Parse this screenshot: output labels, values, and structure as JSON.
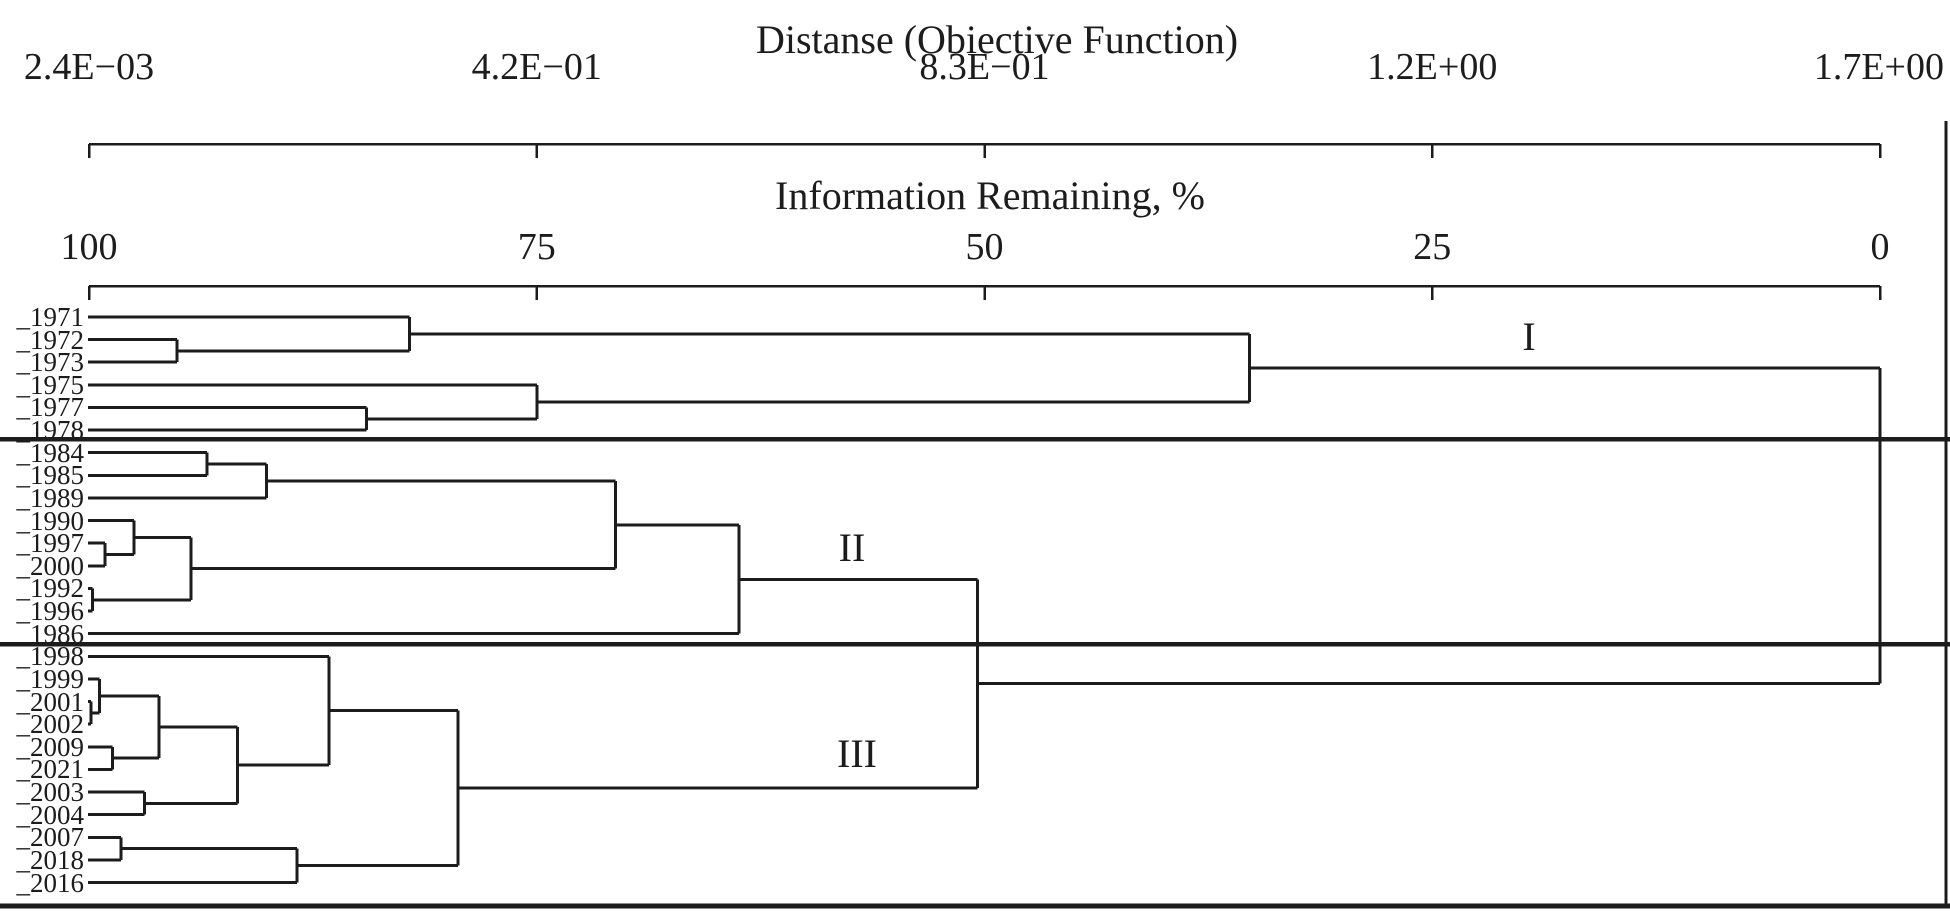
{
  "figure": {
    "distance_axis": {
      "title": "Distanse (Obiective Function)",
      "tick_labels": [
        "2.4E−03",
        "4.2E−01",
        "8.3E−01",
        "1.2E+00",
        "1.7E+00"
      ]
    },
    "info_axis": {
      "title": "Information Remaining, %",
      "tick_labels": [
        "100",
        "75",
        "50",
        "25",
        "0"
      ]
    },
    "cluster_labels": [
      "I",
      "II",
      "III"
    ]
  },
  "chart_data": {
    "type": "dendrogram",
    "orientation": "horizontal, leaves at left, root at right",
    "title": "Distanse (Obiective Function)",
    "x_axis_top": {
      "label": "Distanse (Obiective Function)",
      "tick_labels": [
        "2.4E−03",
        "4.2E−01",
        "8.3E−01",
        "1.2E+00",
        "1.7E+00"
      ],
      "tick_values": [
        0.0024,
        0.42,
        0.83,
        1.2,
        1.7
      ]
    },
    "x_axis_bottom": {
      "label": "Information Remaining, %",
      "tick_labels": [
        "100",
        "75",
        "50",
        "25",
        "0"
      ],
      "tick_values": [
        100,
        75,
        50,
        25,
        0
      ]
    },
    "leaves": [
      "_1971",
      "_1972",
      "_1973",
      "_1975",
      "_1977",
      "_1978",
      "_1984",
      "_1985",
      "_1989",
      "_1990",
      "_1997",
      "_2000",
      "_1992",
      "_1996",
      "_1986",
      "_1998",
      "_1999",
      "_2001",
      "_2002",
      "_2009",
      "_2021",
      "_2003",
      "_2004",
      "_2007",
      "_2018",
      "_2016"
    ],
    "clusters": {
      "I": [
        "_1971",
        "_1972",
        "_1973",
        "_1975",
        "_1977",
        "_1978"
      ],
      "II": [
        "_1984",
        "_1985",
        "_1989",
        "_1990",
        "_1997",
        "_2000",
        "_1992",
        "_1996",
        "_1986"
      ],
      "III": [
        "_1998",
        "_1999",
        "_2001",
        "_2002",
        "_2009",
        "_2021",
        "_2003",
        "_2004",
        "_2007",
        "_2018",
        "_2016"
      ]
    },
    "merge_height_units": "information remaining, %",
    "tree": {
      "info": 0.0,
      "c": [
        {
          "info": 35.2,
          "c": [
            {
              "info": 82.1,
              "c": [
                "_1971",
                {
                  "info": 95.1,
                  "c": [
                    "_1972",
                    "_1973"
                  ]
                }
              ]
            },
            {
              "info": 75.0,
              "c": [
                "_1975",
                {
                  "info": 84.5,
                  "c": [
                    "_1977",
                    "_1978"
                  ]
                }
              ]
            }
          ]
        },
        {
          "info": 50.4,
          "c": [
            {
              "info": 63.7,
              "c": [
                {
                  "info": 70.6,
                  "c": [
                    {
                      "info": 90.1,
                      "c": [
                        {
                          "info": 93.4,
                          "c": [
                            "_1984",
                            "_1985"
                          ]
                        },
                        "_1989"
                      ]
                    },
                    {
                      "info": 94.3,
                      "c": [
                        {
                          "info": 97.5,
                          "c": [
                            "_1990",
                            {
                              "info": 99.1,
                              "c": [
                                "_1997",
                                "_2000"
                              ]
                            }
                          ]
                        },
                        {
                          "info": 99.8,
                          "c": [
                            "_1992",
                            "_1996"
                          ]
                        }
                      ]
                    }
                  ]
                },
                "_1986"
              ]
            },
            {
              "info": 79.4,
              "c": [
                {
                  "info": 86.6,
                  "c": [
                    "_1998",
                    {
                      "info": 91.7,
                      "c": [
                        {
                          "info": 96.1,
                          "c": [
                            {
                              "info": 99.4,
                              "c": [
                                "_1999",
                                {
                                  "info": 99.9,
                                  "c": [
                                    "_2001",
                                    "_2002"
                                  ]
                                }
                              ]
                            },
                            {
                              "info": 98.7,
                              "c": [
                                "_2009",
                                "_2021"
                              ]
                            }
                          ]
                        },
                        {
                          "info": 96.9,
                          "c": [
                            "_2003",
                            "_2004"
                          ]
                        }
                      ]
                    }
                  ]
                },
                {
                  "info": 88.4,
                  "c": [
                    {
                      "info": 98.2,
                      "c": [
                        "_2007",
                        "_2018"
                      ]
                    },
                    "_2016"
                  ]
                }
              ]
            }
          ]
        }
      ]
    }
  }
}
